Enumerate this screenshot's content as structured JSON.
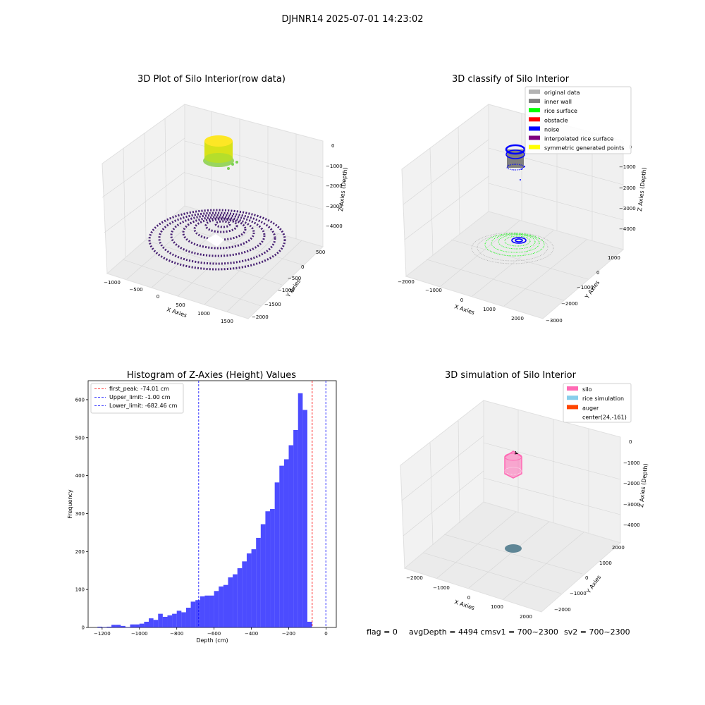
{
  "suptitle": "DJHNR14 2025-07-01 14:23:02",
  "panel_raw": {
    "title": "3D Plot of Silo Interior(row data)",
    "xlabel": "X Axies",
    "ylabel": "Y Axies",
    "zlabel": "Z Axies (Depth)",
    "xticks": [
      "−1000",
      "−500",
      "0",
      "500",
      "1000",
      "1500"
    ],
    "yticks": [
      "500",
      "0",
      "−500",
      "−1000",
      "−1500",
      "−2000"
    ],
    "zticks": [
      "0",
      "−1000",
      "−2000",
      "−3000",
      "−4000"
    ]
  },
  "panel_classify": {
    "title": "3D classify of Silo Interior",
    "xlabel": "X Axies",
    "ylabel": "Y Axies",
    "zlabel": "Z Axies (Depth)",
    "xticks": [
      "−2000",
      "−1000",
      "0",
      "1000",
      "2000"
    ],
    "yticks": [
      "1000",
      "0",
      "−1000",
      "−2000",
      "−3000"
    ],
    "zticks": [
      "0",
      "−1000",
      "−2000",
      "−3000",
      "−4000"
    ],
    "legend": [
      {
        "label": "original data",
        "color": "#b3b3b3"
      },
      {
        "label": "inner wall",
        "color": "#808080"
      },
      {
        "label": "rice surface",
        "color": "#00ff00"
      },
      {
        "label": "obstacle",
        "color": "#ff0000"
      },
      {
        "label": "noise",
        "color": "#0000ff"
      },
      {
        "label": "interpolated rice surface",
        "color": "#800080"
      },
      {
        "label": "symmetric generated points",
        "color": "#ffff00"
      }
    ]
  },
  "panel_sim": {
    "title": "3D simulation of Silo Interior",
    "xlabel": "X Axies",
    "ylabel": "Y Axies",
    "zlabel": "Z Axies (Depth)",
    "xticks": [
      "−2000",
      "−1000",
      "0",
      "1000",
      "2000"
    ],
    "yticks": [
      "2000",
      "1000",
      "0",
      "−1000",
      "−2000"
    ],
    "zticks": [
      "0",
      "−1000",
      "−2000",
      "−3000",
      "−4000"
    ],
    "legend": [
      {
        "label": "silo",
        "color": "#ff69b4"
      },
      {
        "label": "rice simulation",
        "color": "#87ceeb"
      },
      {
        "label": "auger",
        "color": "#ff4500"
      },
      {
        "label": "center(24,-161)",
        "color": ""
      }
    ]
  },
  "footer": {
    "flag": "flag = 0",
    "avg": "avgDepth = 4494 cmsv1 = 700~2300",
    "sv2": "sv2 = 700~2300"
  },
  "chart_data": {
    "type": "bar",
    "title": "Histogram of Z-Axies (Height) Values",
    "xlabel": "Depth (cm)",
    "ylabel": "Frequency",
    "xlim": [
      -1275,
      55
    ],
    "ylim": [
      0,
      650
    ],
    "xticks": [
      -1200,
      -1000,
      -800,
      -600,
      -400,
      -200,
      0
    ],
    "yticks": [
      0,
      100,
      200,
      300,
      400,
      500,
      600
    ],
    "bin_start": -1225,
    "bin_width": 25,
    "values": [
      2,
      1,
      2,
      7,
      7,
      4,
      1,
      8,
      8,
      10,
      15,
      24,
      20,
      36,
      28,
      32,
      36,
      44,
      40,
      52,
      68,
      72,
      82,
      84,
      84,
      96,
      108,
      112,
      132,
      140,
      156,
      174,
      195,
      206,
      236,
      272,
      306,
      312,
      382,
      426,
      443,
      480,
      520,
      617,
      573,
      15
    ],
    "color": "#0000ff",
    "vlines": [
      {
        "label": "first_peak: -74.01 cm",
        "x": -74.01,
        "color": "#ff0000"
      },
      {
        "label": "Upper_limit: -1.00 cm",
        "x": -1.0,
        "color": "#0000ff"
      },
      {
        "label": "Lower_limit: -682.46 cm",
        "x": -682.46,
        "color": "#0000ff"
      }
    ],
    "legend_position": "top-left"
  }
}
